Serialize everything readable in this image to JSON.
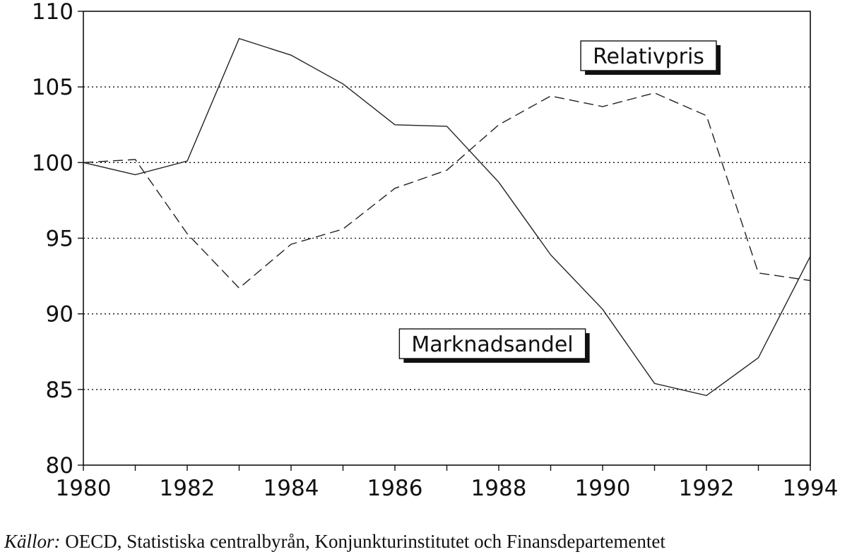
{
  "chart_data": {
    "type": "line",
    "x": [
      1980,
      1981,
      1982,
      1983,
      1984,
      1985,
      1986,
      1987,
      1988,
      1989,
      1990,
      1991,
      1992,
      1993,
      1994
    ],
    "series": [
      {
        "name": "Relativpris",
        "style": "dashed",
        "values": [
          100.0,
          100.2,
          95.3,
          91.7,
          94.6,
          95.6,
          98.3,
          99.5,
          102.5,
          104.4,
          103.7,
          104.6,
          103.1,
          92.7,
          92.2
        ]
      },
      {
        "name": "Marknadsandel",
        "style": "solid",
        "values": [
          100.0,
          99.2,
          100.1,
          108.2,
          107.1,
          105.2,
          102.5,
          102.4,
          98.7,
          93.9,
          90.3,
          85.4,
          84.6,
          87.1,
          93.8
        ]
      }
    ],
    "xlim": [
      1980,
      1994
    ],
    "ylim": [
      80,
      110
    ],
    "x_ticks": [
      "1980",
      "1982",
      "1984",
      "1986",
      "1988",
      "1990",
      "1992",
      "1994"
    ],
    "y_ticks": [
      "80",
      "85",
      "90",
      "95",
      "100",
      "105",
      "110"
    ],
    "grid": "horizontal dotted",
    "line_color": "#222222"
  },
  "source": {
    "prefix": "Källor:",
    "text": " OECD, Statistiska centralbyrån, Konjunkturinstitutet och Finansdepartementet"
  }
}
